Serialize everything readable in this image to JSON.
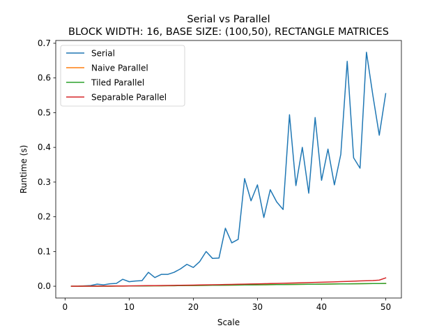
{
  "chart_data": {
    "type": "line",
    "title": "Serial vs Parallel",
    "subtitle": "BLOCK WIDTH: 16, BASE SIZE: (100,50), RECTANGLE MATRICES",
    "xlabel": "Scale",
    "ylabel": "Runtime (s)",
    "xlim": [
      -1.45,
      52.45
    ],
    "ylim": [
      -0.034,
      0.708
    ],
    "xticks": [
      0,
      10,
      20,
      30,
      40,
      50
    ],
    "yticks": [
      0.0,
      0.1,
      0.2,
      0.3,
      0.4,
      0.5,
      0.6,
      0.7
    ],
    "ytick_labels": [
      "0.0",
      "0.1",
      "0.2",
      "0.3",
      "0.4",
      "0.5",
      "0.6",
      "0.7"
    ],
    "grid": false,
    "legend_position": "top-left",
    "x": [
      1,
      2,
      3,
      4,
      5,
      6,
      7,
      8,
      9,
      10,
      11,
      12,
      13,
      14,
      15,
      16,
      17,
      18,
      19,
      20,
      21,
      22,
      23,
      24,
      25,
      26,
      27,
      28,
      29,
      30,
      31,
      32,
      33,
      34,
      35,
      36,
      37,
      38,
      39,
      40,
      41,
      42,
      43,
      44,
      45,
      46,
      47,
      48,
      49,
      50
    ],
    "series": [
      {
        "name": "Serial",
        "color": "#1f77b4",
        "values": [
          0.0,
          0.0,
          0.001,
          0.002,
          0.006,
          0.004,
          0.007,
          0.008,
          0.02,
          0.013,
          0.015,
          0.016,
          0.04,
          0.025,
          0.034,
          0.034,
          0.04,
          0.05,
          0.063,
          0.054,
          0.071,
          0.1,
          0.08,
          0.081,
          0.167,
          0.125,
          0.135,
          0.31,
          0.246,
          0.292,
          0.198,
          0.278,
          0.243,
          0.221,
          0.494,
          0.29,
          0.4,
          0.268,
          0.486,
          0.305,
          0.395,
          0.292,
          0.38,
          0.648,
          0.37,
          0.34,
          0.674,
          0.55,
          0.435,
          0.555
        ]
      },
      {
        "name": "Naive Parallel",
        "color": "#ff7f0e",
        "values": [
          0.0,
          0.0,
          0.0001,
          0.0001,
          0.0002,
          0.0002,
          0.0003,
          0.0004,
          0.0005,
          0.0006,
          0.0007,
          0.0008,
          0.0009,
          0.0011,
          0.0012,
          0.0014,
          0.0015,
          0.0017,
          0.0019,
          0.002,
          0.0022,
          0.0024,
          0.0026,
          0.0028,
          0.003,
          0.0032,
          0.0034,
          0.0036,
          0.0038,
          0.004,
          0.0042,
          0.0044,
          0.0046,
          0.0048,
          0.005,
          0.0052,
          0.0054,
          0.0056,
          0.0058,
          0.006,
          0.0062,
          0.0064,
          0.0066,
          0.0068,
          0.007,
          0.0072,
          0.0074,
          0.0076,
          0.0078,
          0.008
        ]
      },
      {
        "name": "Tiled Parallel",
        "color": "#2ca02c",
        "values": [
          0.0,
          0.0,
          0.0001,
          0.0001,
          0.0002,
          0.0002,
          0.0003,
          0.0004,
          0.0005,
          0.0006,
          0.0007,
          0.0008,
          0.0009,
          0.0011,
          0.0012,
          0.0014,
          0.0015,
          0.0017,
          0.0019,
          0.002,
          0.0022,
          0.0024,
          0.0026,
          0.0028,
          0.003,
          0.0032,
          0.0034,
          0.0036,
          0.0038,
          0.004,
          0.0042,
          0.0044,
          0.0046,
          0.0048,
          0.005,
          0.0052,
          0.0054,
          0.0056,
          0.0058,
          0.006,
          0.0062,
          0.0064,
          0.0066,
          0.0068,
          0.007,
          0.0072,
          0.0074,
          0.0076,
          0.0078,
          0.008
        ]
      },
      {
        "name": "Separable Parallel",
        "color": "#d62728",
        "values": [
          0.0,
          0.0,
          0.0001,
          0.0002,
          0.0003,
          0.0004,
          0.0005,
          0.0007,
          0.0008,
          0.001,
          0.0012,
          0.0014,
          0.0016,
          0.0018,
          0.002,
          0.0023,
          0.0025,
          0.0028,
          0.003,
          0.0033,
          0.0036,
          0.0039,
          0.0042,
          0.0045,
          0.0049,
          0.0052,
          0.0056,
          0.006,
          0.0064,
          0.0068,
          0.0072,
          0.0076,
          0.008,
          0.0085,
          0.009,
          0.0095,
          0.01,
          0.0105,
          0.011,
          0.0115,
          0.012,
          0.0126,
          0.0132,
          0.0138,
          0.0145,
          0.0152,
          0.0158,
          0.0163,
          0.0175,
          0.024
        ]
      }
    ]
  }
}
